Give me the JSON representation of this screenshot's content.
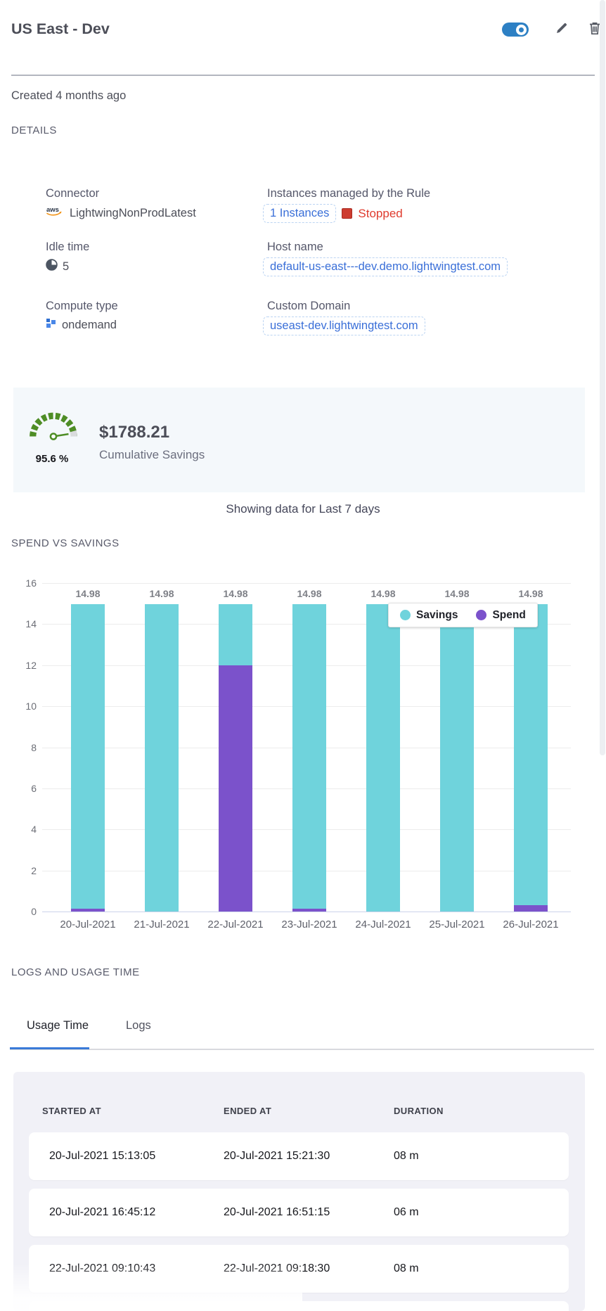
{
  "header": {
    "title": "US East - Dev",
    "toggle_state": "on"
  },
  "meta": {
    "created": "Created 4 months ago"
  },
  "section_titles": {
    "details": "DETAILS",
    "chart": "SPEND VS SAVINGS",
    "logs": "LOGS AND USAGE TIME"
  },
  "details": {
    "connector": {
      "label": "Connector",
      "value": "LightwingNonProdLatest"
    },
    "instances": {
      "label": "Instances managed by the Rule",
      "link_text": "1 Instances",
      "status_text": "Stopped",
      "status_color": "#df3b2e"
    },
    "idle_time": {
      "label": "Idle time",
      "value": "5"
    },
    "host_name": {
      "label": "Host name",
      "value": "default-us-east---dev.demo.lightwingtest.com"
    },
    "compute_type": {
      "label": "Compute type",
      "value": "ondemand"
    },
    "custom_domain": {
      "label": "Custom Domain",
      "value": "useast-dev.lightwingtest.com"
    }
  },
  "savings_card": {
    "gauge_percent": "95.6 %",
    "amount": "$1788.21",
    "caption": "Cumulative Savings",
    "gauge_color": "#4e8d25"
  },
  "data_range_note": "Showing data for Last 7 days",
  "chart_data": {
    "type": "bar",
    "stacked": true,
    "title": "SPEND VS SAVINGS",
    "categories": [
      "20-Jul-2021",
      "21-Jul-2021",
      "22-Jul-2021",
      "23-Jul-2021",
      "24-Jul-2021",
      "25-Jul-2021",
      "26-Jul-2021"
    ],
    "series": [
      {
        "name": "Savings",
        "color": "#6fd3dc",
        "values": [
          14.83,
          14.98,
          2.98,
          14.83,
          14.98,
          14.98,
          14.68
        ]
      },
      {
        "name": "Spend",
        "color": "#7b52cb",
        "values": [
          0.15,
          0,
          12.0,
          0.15,
          0,
          0,
          0.3
        ]
      }
    ],
    "bar_labels": [
      "14.98",
      "14.98",
      "14.98",
      "14.98",
      "14.98",
      "14.98",
      "14.98"
    ],
    "ylim": [
      0,
      16
    ],
    "yticks": [
      0,
      2,
      4,
      6,
      8,
      10,
      12,
      14,
      16
    ],
    "grid": true,
    "legend_position": "top-right-inside"
  },
  "tabs": {
    "usage": {
      "label": "Usage Time",
      "active": true
    },
    "logs": {
      "label": "Logs",
      "active": false
    }
  },
  "usage_table": {
    "columns": [
      "STARTED AT",
      "ENDED AT",
      "DURATION"
    ],
    "rows": [
      [
        "20-Jul-2021 15:13:05",
        "20-Jul-2021 15:21:30",
        "08 m"
      ],
      [
        "20-Jul-2021 16:45:12",
        "20-Jul-2021 16:51:15",
        "06 m"
      ],
      [
        "22-Jul-2021 09:10:43",
        "22-Jul-2021 09:18:30",
        "08 m"
      ]
    ],
    "partial_extra_row": true
  },
  "colors": {
    "accent_blue": "#2d80c4",
    "link_blue": "#3a6fd8",
    "stopped_red": "#df3b2e",
    "savings_teal": "#6fd3dc",
    "spend_purple": "#7b52cb",
    "gauge_green": "#4e8d25",
    "card_bg": "#f4f8fb",
    "panel_bg": "#f1f1f7"
  }
}
